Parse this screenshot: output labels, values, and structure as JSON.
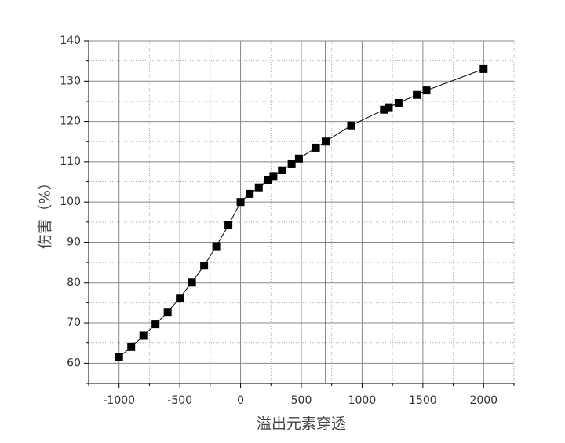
{
  "chart_data": {
    "type": "line",
    "x_label": "溢出元素穿透",
    "y_label": "伤害（%）",
    "x": [
      -1000,
      -900,
      -800,
      -700,
      -600,
      -500,
      -400,
      -300,
      -200,
      -100,
      0,
      75,
      150,
      225,
      270,
      340,
      420,
      480,
      620,
      700,
      910,
      1180,
      1220,
      1300,
      1450,
      1530,
      2000
    ],
    "series": [
      {
        "color": "#000000",
        "values": [
          61.5,
          64,
          66.8,
          69.6,
          72.7,
          76.2,
          80.1,
          84.2,
          89,
          94.2,
          100,
          102,
          103.6,
          105.5,
          106.4,
          107.9,
          109.4,
          110.8,
          113.5,
          115,
          119,
          122.9,
          123.5,
          124.6,
          126.6,
          127.7,
          133
        ]
      }
    ],
    "xlim": [
      -1250,
      2250
    ],
    "ylim": [
      55,
      140
    ],
    "xticks": [
      -1000,
      -500,
      0,
      500,
      1000,
      1500,
      2000
    ],
    "yticks": [
      60,
      70,
      80,
      90,
      100,
      110,
      120,
      130,
      140
    ],
    "minor_xticks": [
      -1250,
      -750,
      -250,
      250,
      750,
      1250,
      1750,
      2250
    ],
    "minor_yticks": [
      55,
      65,
      75,
      85,
      95,
      105,
      115,
      125,
      135
    ],
    "vline": 700,
    "grid": true
  }
}
